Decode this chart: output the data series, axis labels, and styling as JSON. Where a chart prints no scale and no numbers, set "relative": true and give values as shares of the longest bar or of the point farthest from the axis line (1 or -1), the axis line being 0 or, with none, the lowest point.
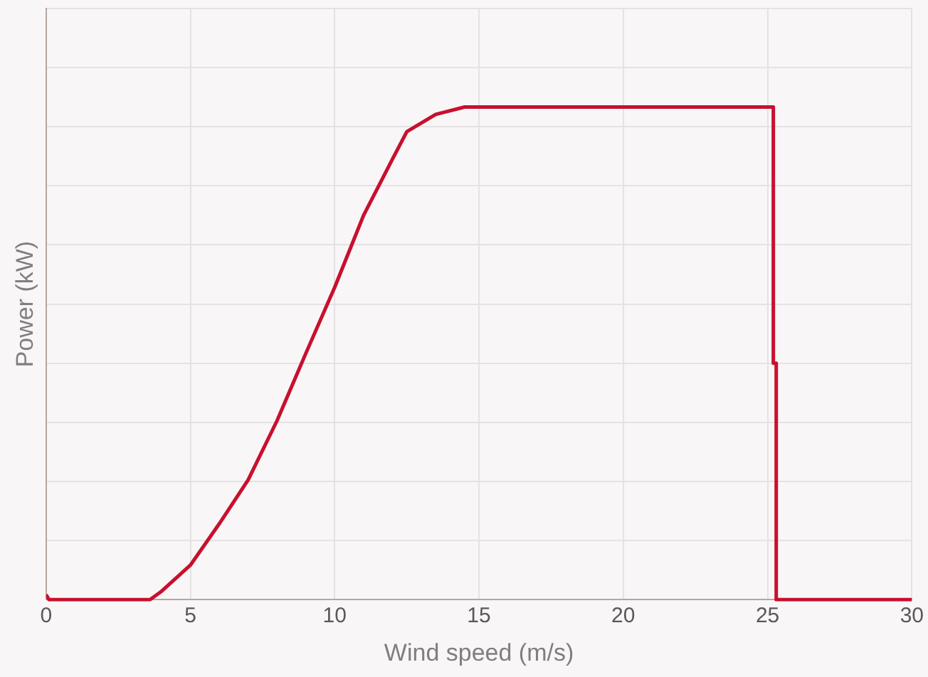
{
  "chart_data": {
    "type": "line",
    "xlabel": "Wind speed (m/s)",
    "ylabel": "Power (kW)",
    "relative": true,
    "x": [
      0,
      0.1,
      3.6,
      4,
      5,
      6,
      7,
      8,
      9,
      10,
      11,
      12,
      12.5,
      13.5,
      14.5,
      25.2,
      25.2,
      25.3,
      25.3,
      30
    ],
    "series": [
      {
        "color": "#c8102e",
        "values": [
          0.01,
          0,
          0,
          0.017,
          0.07,
          0.154,
          0.243,
          0.363,
          0.5,
          0.634,
          0.78,
          0.894,
          0.95,
          0.985,
          1,
          1,
          0.48,
          0.48,
          0,
          0
        ]
      }
    ],
    "xlim": [
      0,
      30
    ],
    "xticks": [
      0,
      5,
      10,
      15,
      20,
      25,
      30
    ],
    "grid": true,
    "marker": "none",
    "line_style": "solid",
    "legend": false
  }
}
